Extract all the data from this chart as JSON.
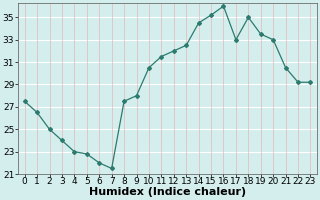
{
  "x": [
    0,
    1,
    2,
    3,
    4,
    5,
    6,
    7,
    8,
    9,
    10,
    11,
    12,
    13,
    14,
    15,
    16,
    17,
    18,
    19,
    20,
    21,
    22,
    23
  ],
  "y": [
    27.5,
    26.5,
    25.0,
    24.0,
    23.0,
    22.8,
    22.0,
    21.5,
    27.5,
    28.0,
    30.5,
    31.5,
    32.0,
    32.5,
    34.5,
    35.2,
    36.0,
    33.0,
    35.0,
    33.5,
    33.0,
    30.5,
    29.2,
    29.2
  ],
  "xlabel": "Humidex (Indice chaleur)",
  "ylim": [
    21,
    36
  ],
  "xlim": [
    -0.5,
    23.5
  ],
  "yticks": [
    21,
    23,
    25,
    27,
    29,
    31,
    33,
    35
  ],
  "xticks": [
    0,
    1,
    2,
    3,
    4,
    5,
    6,
    7,
    8,
    9,
    10,
    11,
    12,
    13,
    14,
    15,
    16,
    17,
    18,
    19,
    20,
    21,
    22,
    23
  ],
  "line_color": "#2d7a6e",
  "marker_color": "#2d7a6e",
  "bg_color": "#d4eeee",
  "grid_color_white": "#ffffff",
  "grid_color_pink": "#e8b8b8",
  "xlabel_fontsize": 8,
  "tick_fontsize": 6.5
}
